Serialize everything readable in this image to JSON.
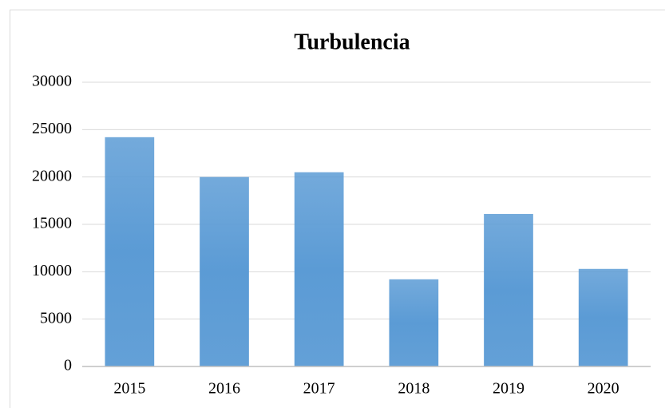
{
  "chart_data": {
    "type": "bar",
    "title": "Turbulencia",
    "categories": [
      "2015",
      "2016",
      "2017",
      "2018",
      "2019",
      "2020"
    ],
    "values": [
      24200,
      20000,
      20500,
      9200,
      16100,
      10300
    ],
    "color": "#5b9bd5",
    "ylim": [
      0,
      30000
    ],
    "yticks": [
      0,
      5000,
      10000,
      15000,
      20000,
      25000,
      30000
    ],
    "grid": true
  }
}
